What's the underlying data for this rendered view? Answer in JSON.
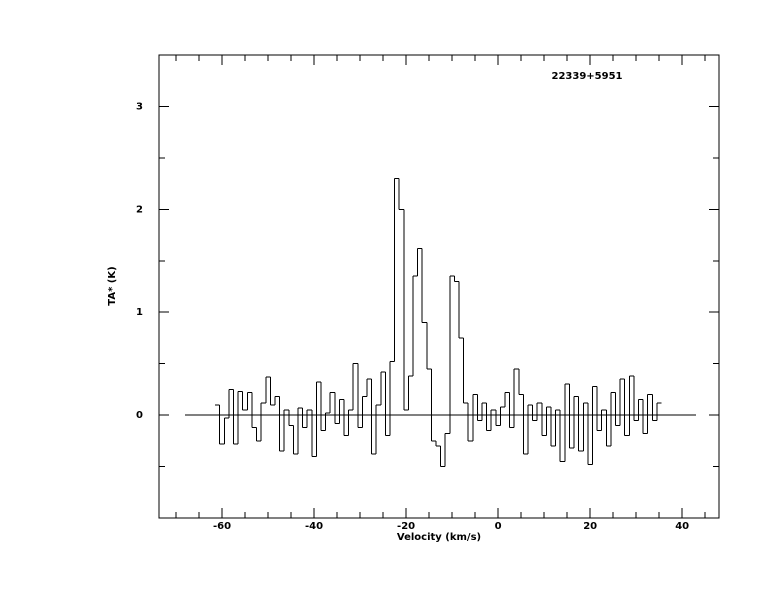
{
  "chart_data": {
    "type": "step",
    "annotation": "22339+5951",
    "x_label": "Velocity (km/s)",
    "y_label": "TA* (K)",
    "xlim": [
      -73.7,
      48.0
    ],
    "ylim": [
      -1,
      3.5
    ],
    "xticks": [
      -60,
      -40,
      -20,
      0,
      20,
      40
    ],
    "xticks_minor": [
      -70,
      -65,
      -55,
      -50,
      -45,
      -35,
      -30,
      -25,
      -15,
      -10,
      -5,
      5,
      10,
      15,
      25,
      30,
      35,
      45
    ],
    "yticks": [
      0,
      1,
      2,
      3
    ],
    "yticks_minor": [
      -0.5,
      0.5,
      1.5,
      2.5
    ],
    "baseline": {
      "y": 0,
      "x": [
        -68,
        43
      ]
    },
    "color": "#000000",
    "x": [
      -61,
      -60,
      -59,
      -58,
      -57,
      -56,
      -55,
      -54,
      -53,
      -52,
      -51,
      -50,
      -49,
      -48,
      -47,
      -46,
      -45,
      -44,
      -43,
      -42,
      -41,
      -40,
      -39,
      -38,
      -37,
      -36,
      -35,
      -34,
      -33,
      -32,
      -31,
      -30,
      -29,
      -28,
      -27,
      -26,
      -25,
      -24,
      -23,
      -22,
      -21,
      -20,
      -19,
      -18,
      -17,
      -16,
      -15,
      -14,
      -13,
      -12,
      -11,
      -10,
      -9,
      -8,
      -7,
      -6,
      -5,
      -4,
      -3,
      -2,
      -1,
      0,
      1,
      2,
      3,
      4,
      5,
      6,
      7,
      8,
      9,
      10,
      11,
      12,
      13,
      14,
      15,
      16,
      17,
      18,
      19,
      20,
      21,
      22,
      23,
      24,
      25,
      26,
      27,
      28,
      29,
      30,
      31,
      32,
      33,
      34,
      35
    ],
    "values": [
      0.1,
      -0.28,
      -0.03,
      0.25,
      -0.28,
      0.23,
      0.05,
      0.22,
      -0.12,
      -0.25,
      0.12,
      0.37,
      0.1,
      0.18,
      -0.35,
      0.05,
      -0.1,
      -0.38,
      0.07,
      -0.12,
      0.05,
      -0.4,
      0.32,
      -0.15,
      0.02,
      0.22,
      -0.08,
      0.15,
      -0.2,
      0.05,
      0.5,
      -0.12,
      0.18,
      0.35,
      -0.38,
      0.1,
      0.42,
      -0.2,
      0.52,
      2.3,
      2.0,
      0.05,
      0.38,
      1.35,
      1.62,
      0.9,
      0.45,
      -0.25,
      -0.3,
      -0.5,
      -0.18,
      1.35,
      1.3,
      0.75,
      0.12,
      -0.25,
      0.2,
      -0.05,
      0.12,
      -0.15,
      0.05,
      -0.1,
      0.08,
      0.22,
      -0.12,
      0.45,
      0.2,
      -0.38,
      0.1,
      -0.05,
      0.12,
      -0.2,
      0.08,
      -0.3,
      0.05,
      -0.45,
      0.3,
      -0.32,
      0.18,
      -0.35,
      0.12,
      -0.48,
      0.28,
      -0.15,
      0.05,
      -0.3,
      0.22,
      -0.1,
      0.35,
      -0.2,
      0.38,
      -0.05,
      0.15,
      -0.18,
      0.2,
      -0.05,
      0.12
    ]
  }
}
